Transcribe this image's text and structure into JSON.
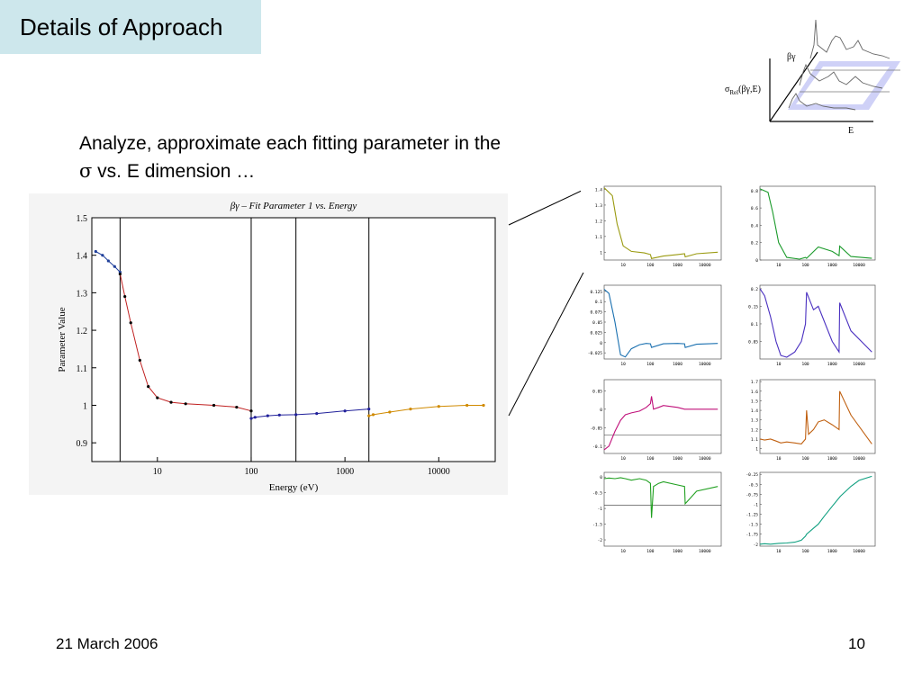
{
  "slide": {
    "title": "Details of Approach",
    "body_line1": "Analyze, approximate each fitting parameter in the",
    "body_sigma": "σ",
    "body_line2_rest": " vs. E dimension …",
    "date": "21 March 2006",
    "page_number": "10"
  },
  "diagram3d": {
    "label_axis_vertical": "βγ",
    "label_sigma": "σ",
    "label_sigma_sub": "Rel",
    "label_sigma_args": "(βγ,E)",
    "label_axis_e": "E"
  },
  "chart_data": [
    {
      "type": "scatter",
      "title": "βγ – Fit Parameter 1 vs. Energy",
      "xlabel": "Energy (eV)",
      "ylabel": "Parameter Value",
      "xscale": "log",
      "xlim": [
        2,
        40000
      ],
      "ylim": [
        0.85,
        1.5
      ],
      "x_ticks": [
        "10",
        "100",
        "1000",
        "10000"
      ],
      "y_ticks": [
        "1.5",
        "1.4",
        "1.3",
        "1.2",
        "1.1",
        "1",
        "0.9"
      ],
      "region_boundaries_x": [
        4,
        100,
        300,
        1800
      ],
      "series": [
        {
          "color": "#1f3f9a",
          "x": [
            2.2,
            2.6,
            3.0,
            3.5,
            4.0
          ],
          "y": [
            1.41,
            1.4,
            1.385,
            1.37,
            1.355
          ]
        },
        {
          "color": "#b01010",
          "x": [
            4.0,
            4.5,
            5.2,
            6.5,
            8.0,
            10,
            14,
            20,
            40,
            70,
            100
          ],
          "y": [
            1.35,
            1.29,
            1.22,
            1.12,
            1.05,
            1.02,
            1.008,
            1.004,
            1.0,
            0.995,
            0.985
          ]
        },
        {
          "color": "#20209a",
          "x": [
            100,
            110,
            150,
            200,
            300,
            500,
            1000,
            1800
          ],
          "y": [
            0.965,
            0.968,
            0.972,
            0.974,
            0.975,
            0.978,
            0.985,
            0.99
          ]
        },
        {
          "color": "#d08a00",
          "x": [
            1800,
            2000,
            3000,
            5000,
            10000,
            20000,
            30000
          ],
          "y": [
            0.972,
            0.975,
            0.982,
            0.99,
            0.997,
            1.0,
            1.0
          ]
        }
      ]
    },
    {
      "type": "line",
      "color": "#9a9a10",
      "x_ticks": [
        "10",
        "100",
        "1000",
        "10000"
      ],
      "y_ticks": [
        "1.4",
        "1.3",
        "1.2",
        "1.1",
        "1"
      ],
      "ylim": [
        0.95,
        1.42
      ],
      "x": [
        2,
        4,
        6,
        10,
        20,
        60,
        100,
        110,
        300,
        1000,
        1800,
        1900,
        5000,
        30000
      ],
      "y": [
        1.41,
        1.36,
        1.18,
        1.04,
        1.005,
        0.995,
        0.985,
        0.96,
        0.975,
        0.985,
        0.99,
        0.97,
        0.99,
        1.0
      ]
    },
    {
      "type": "line",
      "color": "#1a9a2a",
      "x_ticks": [
        "10",
        "100",
        "1000",
        "10000"
      ],
      "y_ticks": [
        "0.8",
        "0.6",
        "0.4",
        "0.2",
        "0"
      ],
      "ylim": [
        0,
        0.85
      ],
      "x": [
        2,
        4,
        6,
        10,
        20,
        60,
        100,
        110,
        300,
        1000,
        1800,
        1900,
        5000,
        30000
      ],
      "y": [
        0.82,
        0.78,
        0.55,
        0.2,
        0.03,
        0.01,
        0.03,
        0.02,
        0.15,
        0.1,
        0.05,
        0.16,
        0.04,
        0.02
      ]
    },
    {
      "type": "line",
      "color": "#1a70b0",
      "x_ticks": [
        "10",
        "100",
        "1000",
        "10000"
      ],
      "y_ticks": [
        "0.125",
        "0.1",
        "0.075",
        "0.05",
        "0.025",
        "0",
        "-0.025"
      ],
      "ylim": [
        -0.04,
        0.14
      ],
      "x": [
        2,
        3,
        5,
        8,
        12,
        20,
        40,
        70,
        100,
        110,
        300,
        1000,
        1800,
        1900,
        5000,
        30000
      ],
      "y": [
        0.13,
        0.12,
        0.05,
        -0.03,
        -0.035,
        -0.015,
        -0.005,
        -0.002,
        -0.003,
        -0.012,
        -0.003,
        -0.002,
        -0.003,
        -0.012,
        -0.004,
        -0.002
      ]
    },
    {
      "type": "line",
      "color": "#4a30c0",
      "x_ticks": [
        "10",
        "100",
        "1000",
        "10000"
      ],
      "y_ticks": [
        "0.2",
        "0.15",
        "0.1",
        "0.05"
      ],
      "ylim": [
        0,
        0.21
      ],
      "x": [
        2,
        3,
        5,
        8,
        12,
        20,
        40,
        70,
        100,
        110,
        200,
        300,
        1000,
        1800,
        1900,
        5000,
        30000
      ],
      "y": [
        0.2,
        0.18,
        0.12,
        0.05,
        0.01,
        0.005,
        0.02,
        0.05,
        0.1,
        0.19,
        0.14,
        0.15,
        0.05,
        0.02,
        0.16,
        0.08,
        0.02
      ]
    },
    {
      "type": "line",
      "color": "#c0107a",
      "x_ticks": [
        "10",
        "100",
        "1000",
        "10000"
      ],
      "y_ticks": [
        "0.05",
        "0",
        "-0.05",
        "-0.1"
      ],
      "ylim": [
        -0.12,
        0.08
      ],
      "reference_y": -0.07,
      "x": [
        2,
        3,
        5,
        8,
        12,
        20,
        40,
        70,
        100,
        110,
        130,
        200,
        300,
        1000,
        1800,
        5000,
        30000
      ],
      "y": [
        -0.11,
        -0.1,
        -0.06,
        -0.03,
        -0.015,
        -0.01,
        -0.005,
        0.005,
        0.015,
        0.035,
        0.0,
        0.005,
        0.01,
        0.005,
        0.0,
        0.0,
        0.0
      ]
    },
    {
      "type": "line",
      "color": "#c06010",
      "x_ticks": [
        "10",
        "100",
        "1000",
        "10000"
      ],
      "y_ticks": [
        "1.7",
        "1.6",
        "1.5",
        "1.4",
        "1.3",
        "1.2",
        "1.1",
        "1"
      ],
      "ylim": [
        0.95,
        1.72
      ],
      "x": [
        2,
        3,
        5,
        8,
        12,
        20,
        40,
        70,
        100,
        110,
        130,
        200,
        300,
        500,
        1000,
        1800,
        1900,
        5000,
        30000
      ],
      "y": [
        1.1,
        1.09,
        1.1,
        1.08,
        1.06,
        1.07,
        1.06,
        1.05,
        1.1,
        1.4,
        1.15,
        1.2,
        1.28,
        1.3,
        1.25,
        1.2,
        1.6,
        1.35,
        1.05
      ]
    },
    {
      "type": "line",
      "color": "#20a020",
      "x_ticks": [
        "10",
        "100",
        "1000",
        "10000"
      ],
      "y_ticks": [
        "0",
        "-0.5",
        "-1",
        "-1.5",
        "-2"
      ],
      "ylim": [
        -2.2,
        0.15
      ],
      "reference_y": -0.9,
      "x": [
        2,
        3,
        5,
        8,
        12,
        20,
        40,
        70,
        100,
        110,
        130,
        200,
        300,
        1000,
        1800,
        1900,
        5000,
        30000
      ],
      "y": [
        -0.05,
        -0.03,
        -0.05,
        -0.02,
        -0.05,
        -0.1,
        -0.05,
        -0.1,
        -0.2,
        -1.3,
        -0.3,
        -0.2,
        -0.15,
        -0.25,
        -0.3,
        -0.85,
        -0.45,
        -0.3
      ]
    },
    {
      "type": "line",
      "color": "#10a080",
      "x_ticks": [
        "10",
        "100",
        "1000",
        "10000"
      ],
      "y_ticks": [
        "-0.25",
        "-0.5",
        "-0.75",
        "-1",
        "-1.25",
        "-1.5",
        "-1.75",
        "-2"
      ],
      "ylim": [
        -2.05,
        -0.2
      ],
      "x": [
        2,
        3,
        5,
        10,
        20,
        40,
        70,
        100,
        110,
        200,
        300,
        500,
        1000,
        2000,
        5000,
        10000,
        30000
      ],
      "y": [
        -2.0,
        -1.99,
        -2.0,
        -1.98,
        -1.97,
        -1.95,
        -1.9,
        -1.8,
        -1.75,
        -1.6,
        -1.5,
        -1.3,
        -1.05,
        -0.8,
        -0.55,
        -0.4,
        -0.3
      ]
    }
  ]
}
